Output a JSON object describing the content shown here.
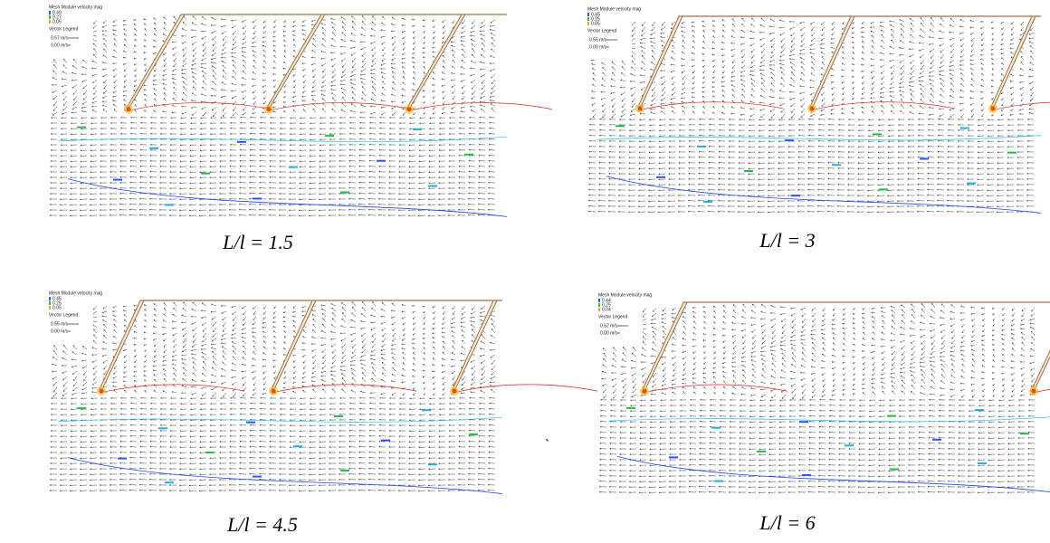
{
  "panels": [
    {
      "legend_title": "Mesh Module velocity mag",
      "legend_values": [
        "0.49",
        "0.27",
        "0.05"
      ],
      "vector_legend": "Vector Legend",
      "vector_max": "0.57 m/s",
      "vector_min": "0.00 m/s",
      "caption": "L/l = 1.5"
    },
    {
      "legend_title": "Mesh Module velocity mag",
      "legend_values": [
        "0.45",
        "0.25",
        "0.05"
      ],
      "vector_legend": "Vector Legend",
      "vector_max": "0.55 m/s",
      "vector_min": "0.00 m/s",
      "caption": "L/l = 3"
    },
    {
      "legend_title": "Mesh Module velocity mag",
      "legend_values": [
        "0.45",
        "0.25",
        "0.05"
      ],
      "vector_legend": "Vector Legend",
      "vector_max": "0.55 m/s",
      "vector_min": "0.00 m/s",
      "caption": "L/l = 4.5"
    },
    {
      "legend_title": "Mesh Module velocity mag",
      "legend_values": [
        "0.44",
        "0.25",
        "0.04"
      ],
      "vector_legend": "Vector Legend",
      "vector_max": "0.52 m/s",
      "vector_min": "0.00 m/s",
      "caption": "L/l = 6"
    }
  ],
  "stray_mark": "`"
}
